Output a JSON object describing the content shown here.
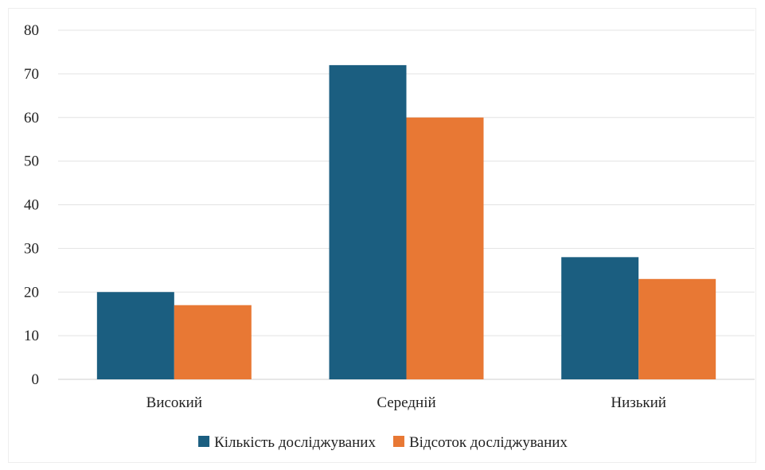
{
  "chart_data": {
    "type": "bar",
    "categories": [
      "Високий",
      "Середній",
      "Низький"
    ],
    "series": [
      {
        "name": "Кількість досліджуваних",
        "values": [
          20,
          72,
          28
        ],
        "color": "#1b5e80"
      },
      {
        "name": "Відсоток досліджуваних",
        "values": [
          17,
          60,
          23
        ],
        "color": "#e87834"
      }
    ],
    "ylim": [
      0,
      80
    ],
    "yticks": [
      0,
      10,
      20,
      30,
      40,
      50,
      60,
      70,
      80
    ],
    "grid": true,
    "legend_position": "bottom",
    "title": "",
    "xlabel": "",
    "ylabel": ""
  }
}
